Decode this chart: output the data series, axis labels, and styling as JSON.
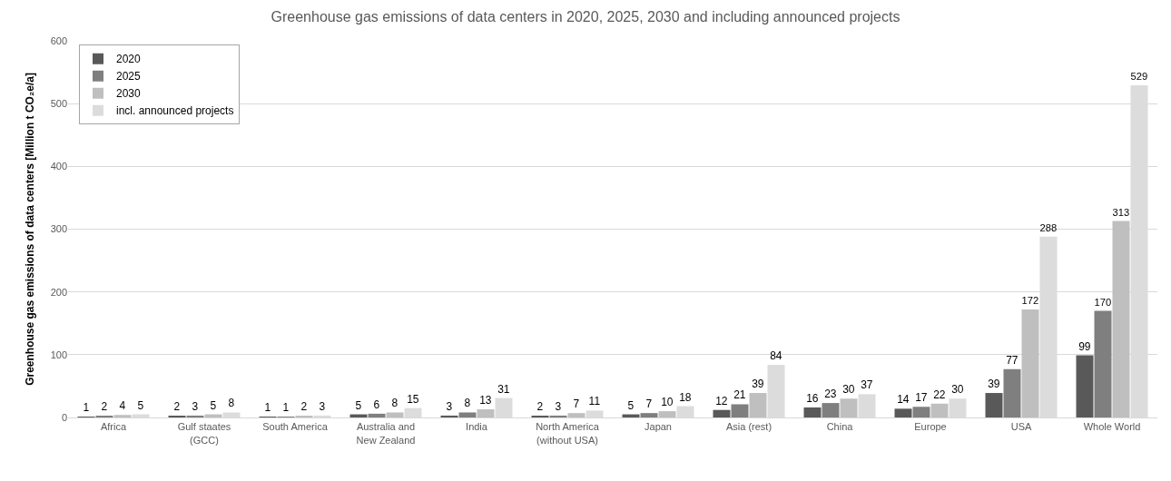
{
  "chart_data": {
    "type": "bar",
    "title": "Greenhouse gas emissions of data centers in 2020, 2025, 2030 and including announced projects",
    "ylabel": "Greenhouse gas emissions of data centers [Million t CO₂e/a]",
    "categories": [
      "Africa",
      "Gulf staates (GCC)",
      "South America",
      "Australia and New Zealand",
      "India",
      "North America (without USA)",
      "Japan",
      "Asia (rest)",
      "China",
      "Europe",
      "USA",
      "Whole World"
    ],
    "series": [
      {
        "name": "2020",
        "color": "#595959",
        "values": [
          1,
          2,
          1,
          5,
          3,
          2,
          5,
          12,
          16,
          14,
          39,
          99
        ]
      },
      {
        "name": "2025",
        "color": "#7f7f7f",
        "values": [
          2,
          3,
          1,
          6,
          8,
          3,
          7,
          21,
          23,
          17,
          77,
          170
        ]
      },
      {
        "name": "2030",
        "color": "#bfbfbf",
        "values": [
          4,
          5,
          2,
          8,
          13,
          7,
          10,
          39,
          30,
          22,
          172,
          313
        ]
      },
      {
        "name": "incl. announced projects",
        "color": "#dcdcdc",
        "values": [
          5,
          8,
          3,
          15,
          31,
          11,
          18,
          84,
          37,
          30,
          288,
          529
        ]
      }
    ],
    "ylim": [
      0,
      600
    ],
    "yticks": [
      0,
      100,
      200,
      300,
      400,
      500,
      600
    ],
    "grid": "y",
    "legend": "top left",
    "data_labels": true
  }
}
